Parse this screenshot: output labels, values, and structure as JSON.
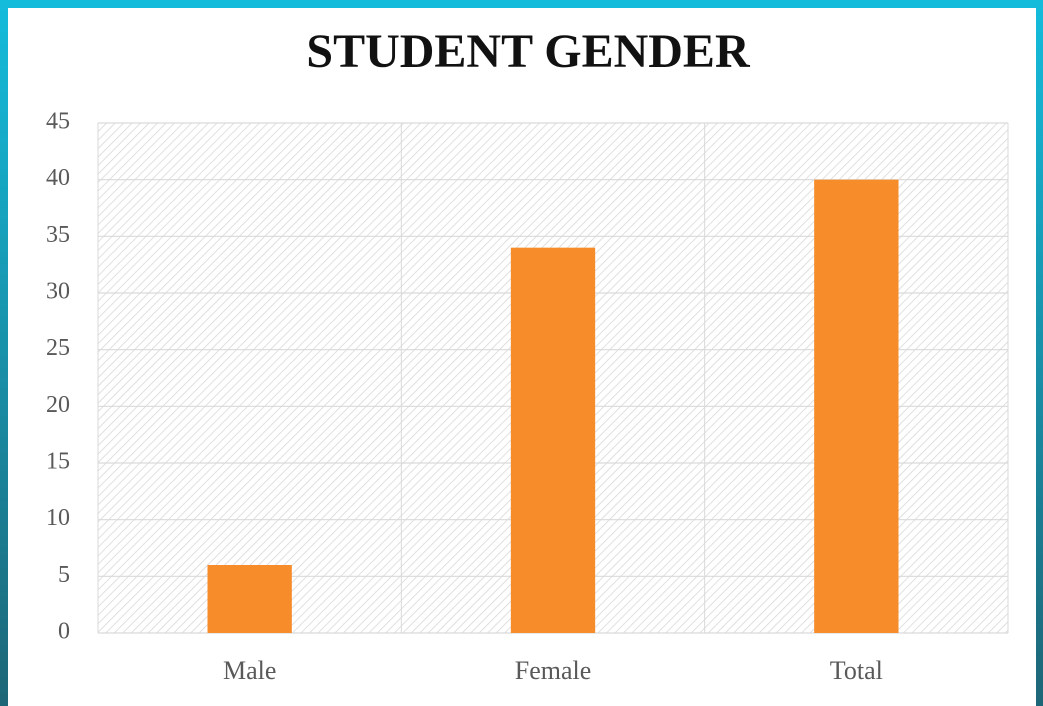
{
  "chart_data": {
    "type": "bar",
    "title": "STUDENT GENDER",
    "categories": [
      "Male",
      "Female",
      "Total"
    ],
    "values": [
      6,
      34,
      40
    ],
    "color": "#f78c2b",
    "ylim": [
      0,
      45
    ],
    "yticks": [
      0,
      5,
      10,
      15,
      20,
      25,
      30,
      35,
      40,
      45
    ],
    "grid": true
  }
}
